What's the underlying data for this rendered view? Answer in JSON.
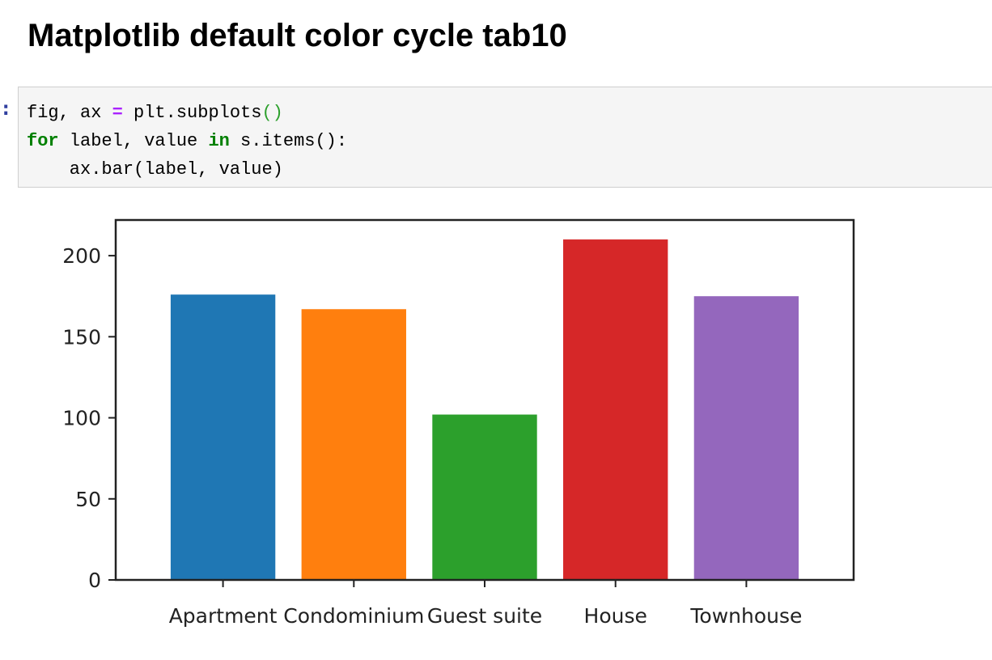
{
  "heading": "Matplotlib default color cycle tab10",
  "prompt": ":",
  "code": {
    "lines": [
      [
        "fig, ax ",
        "=",
        " plt.subplots",
        "()"
      ],
      [
        "for",
        " label, value ",
        "in",
        " s.items():"
      ],
      [
        "    ax.bar(label, value)"
      ]
    ]
  },
  "chart_data": {
    "type": "bar",
    "categories": [
      "Apartment",
      "Condominium",
      "Guest suite",
      "House",
      "Townhouse"
    ],
    "values": [
      176,
      167,
      102,
      210,
      175
    ],
    "colors": [
      "#1f77b4",
      "#ff7f0e",
      "#2ca02c",
      "#d62728",
      "#9467bd"
    ],
    "ylim": [
      0,
      222
    ],
    "yticks": [
      0,
      50,
      100,
      150,
      200
    ],
    "grid": false
  }
}
